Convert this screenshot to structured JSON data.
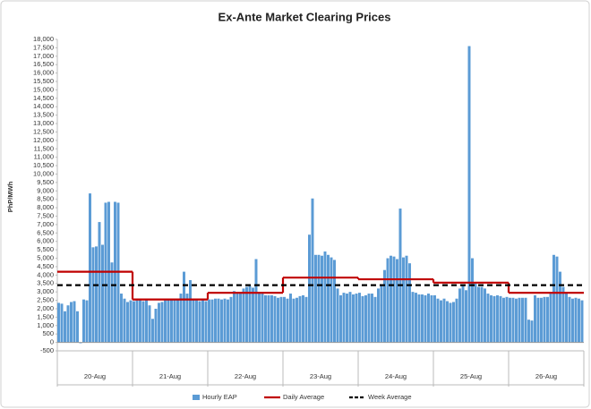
{
  "chart_data": {
    "type": "bar",
    "title": "Ex-Ante Market Clearing Prices",
    "y_label": "PhP/MWh",
    "categories": [
      "20-Aug",
      "21-Aug",
      "22-Aug",
      "23-Aug",
      "24-Aug",
      "25-Aug",
      "26-Aug"
    ],
    "series": [
      {
        "name": "Hourly EAP",
        "color": "#5b9bd5",
        "values": [
          [
            2350,
            2300,
            1850,
            2200,
            2400,
            2450,
            1850,
            -50,
            2550,
            2500,
            8850,
            5650,
            5700,
            7150,
            5800,
            8300,
            8350,
            4750,
            8350,
            8300,
            2900,
            2600,
            2400,
            2500
          ],
          [
            2450,
            2500,
            2500,
            2450,
            2500,
            2200,
            1400,
            2000,
            2350,
            2400,
            2500,
            2550,
            2600,
            2550,
            2600,
            2900,
            4200,
            2900,
            3700,
            2600,
            2500,
            2450,
            2500,
            2450
          ],
          [
            2550,
            2550,
            2600,
            2600,
            2550,
            2600,
            2550,
            2700,
            3050,
            3000,
            3000,
            3200,
            3300,
            3350,
            3250,
            4950,
            3000,
            2900,
            2800,
            2800,
            2800,
            2750,
            2650,
            2700
          ],
          [
            2700,
            2600,
            2900,
            2600,
            2650,
            2750,
            2800,
            2700,
            6400,
            8550,
            5200,
            5200,
            5150,
            5400,
            5200,
            5050,
            4900,
            3200,
            2800,
            2950,
            2900,
            3000,
            2850,
            2900
          ],
          [
            2950,
            2750,
            2800,
            2900,
            2900,
            2700,
            3200,
            3400,
            4300,
            5000,
            5150,
            5100,
            4950,
            7950,
            5050,
            5150,
            4700,
            3000,
            2950,
            2850,
            2850,
            2800,
            2900,
            2800
          ],
          [
            2800,
            2600,
            2500,
            2600,
            2450,
            2350,
            2400,
            2600,
            3200,
            3400,
            3100,
            17600,
            5000,
            3500,
            3300,
            3300,
            3200,
            2900,
            2800,
            2750,
            2800,
            2750,
            2650,
            2700
          ],
          [
            2650,
            2650,
            2600,
            2650,
            2650,
            2650,
            1350,
            1300,
            2800,
            2650,
            2650,
            2700,
            2700,
            2900,
            5200,
            5100,
            4200,
            3300,
            2950,
            2700,
            2600,
            2650,
            2600,
            2500
          ]
        ]
      },
      {
        "name": "Daily Average",
        "color": "#c00000",
        "values": [
          4200,
          2550,
          2950,
          3850,
          3750,
          3550,
          2950
        ]
      },
      {
        "name": "Week Average",
        "color": "#000000",
        "value": 3400
      }
    ],
    "ylim": [
      -500,
      18000
    ],
    "yticks": [
      -500,
      0,
      500,
      {
        "value": 1000,
        "label": "1,000"
      },
      {
        "value": 1500,
        "label": "1,500"
      },
      {
        "value": 2000,
        "label": "2,000"
      },
      {
        "value": 2500,
        "label": "2,500"
      },
      {
        "value": 3000,
        "label": "3,000"
      },
      {
        "value": 3500,
        "label": "3,500"
      },
      {
        "value": 4000,
        "label": "4,000"
      },
      {
        "value": 4500,
        "label": "4,500"
      },
      {
        "value": 5000,
        "label": "5,000"
      },
      {
        "value": 5500,
        "label": "5,500"
      },
      {
        "value": 6000,
        "label": "6,000"
      },
      {
        "value": 6500,
        "label": "6,500"
      },
      {
        "value": 7000,
        "label": "7,000"
      },
      {
        "value": 7500,
        "label": "7,500"
      },
      {
        "value": 8000,
        "label": "8,000"
      },
      {
        "value": 8500,
        "label": "8,500"
      },
      {
        "value": 9000,
        "label": "9,000"
      },
      {
        "value": 9500,
        "label": "9,500"
      },
      {
        "value": 10000,
        "label": "10,000"
      },
      {
        "value": 10500,
        "label": "10,500"
      },
      {
        "value": 11000,
        "label": "11,000"
      },
      {
        "value": 11500,
        "label": "11,500"
      },
      {
        "value": 12000,
        "label": "12,000"
      },
      {
        "value": 12500,
        "label": "12,500"
      },
      {
        "value": 13000,
        "label": "13,000"
      },
      {
        "value": 13500,
        "label": "13,500"
      },
      {
        "value": 14000,
        "label": "14,000"
      },
      {
        "value": 14500,
        "label": "14,500"
      },
      {
        "value": 15000,
        "label": "15,000"
      },
      {
        "value": 15500,
        "label": "15,500"
      },
      {
        "value": 16000,
        "label": "16,000"
      },
      {
        "value": 16500,
        "label": "16,500"
      },
      {
        "value": 17000,
        "label": "17,000"
      },
      {
        "value": 17500,
        "label": "17,500"
      },
      {
        "value": 18000,
        "label": "18,000"
      }
    ]
  }
}
